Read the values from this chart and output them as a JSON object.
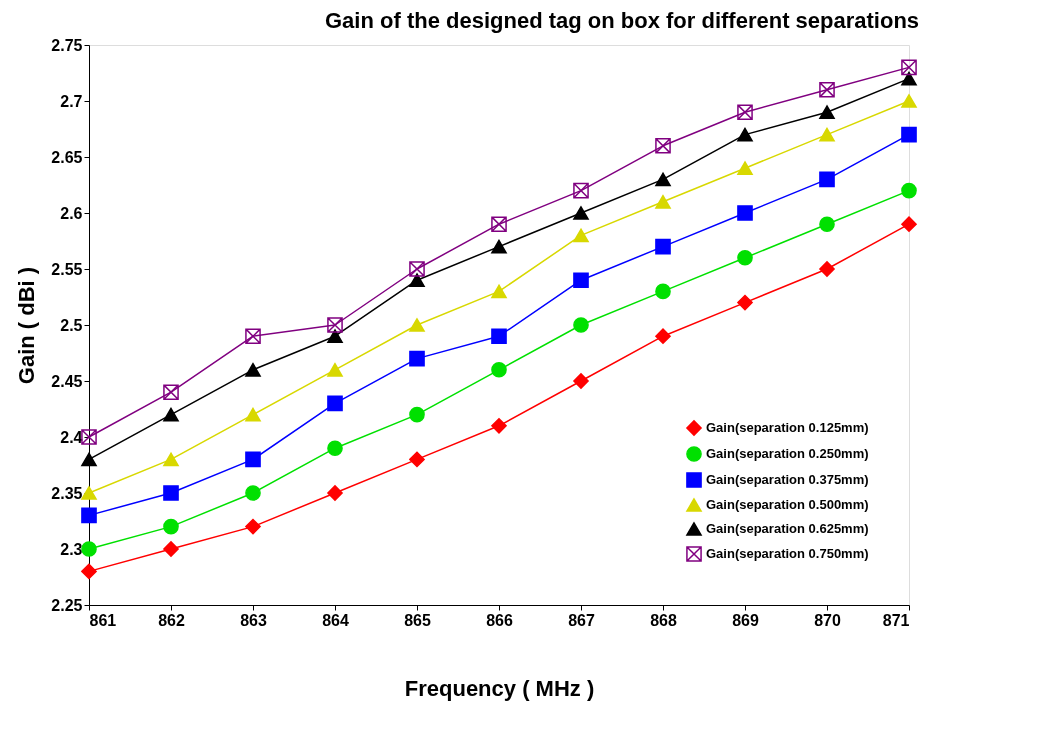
{
  "chart_data": {
    "type": "line",
    "title": "Gain of the designed tag on box for different separations",
    "xlabel": "Frequency ( MHz )",
    "ylabel": "Gain ( dBi )",
    "x": [
      861,
      862,
      863,
      864,
      865,
      866,
      867,
      868,
      869,
      870,
      871
    ],
    "series": [
      {
        "name": "Gain(separation 0.125mm)",
        "color": "#ff0000",
        "marker": "diamond",
        "values": [
          2.28,
          2.3,
          2.32,
          2.35,
          2.38,
          2.41,
          2.45,
          2.49,
          2.52,
          2.55,
          2.59
        ]
      },
      {
        "name": "Gain(separation 0.250mm)",
        "color": "#00e000",
        "marker": "circle",
        "values": [
          2.3,
          2.32,
          2.35,
          2.39,
          2.42,
          2.46,
          2.5,
          2.53,
          2.56,
          2.59,
          2.62
        ]
      },
      {
        "name": "Gain(separation 0.375mm)",
        "color": "#0000ff",
        "marker": "square",
        "values": [
          2.33,
          2.35,
          2.38,
          2.43,
          2.47,
          2.49,
          2.54,
          2.57,
          2.6,
          2.63,
          2.67
        ]
      },
      {
        "name": "Gain(separation 0.500mm)",
        "color": "#d8d800",
        "marker": "triangle",
        "values": [
          2.35,
          2.38,
          2.42,
          2.46,
          2.5,
          2.53,
          2.58,
          2.61,
          2.64,
          2.67,
          2.7
        ]
      },
      {
        "name": "Gain(separation 0.625mm)",
        "color": "#000000",
        "marker": "triangle",
        "values": [
          2.38,
          2.42,
          2.46,
          2.49,
          2.54,
          2.57,
          2.6,
          2.63,
          2.67,
          2.69,
          2.72
        ]
      },
      {
        "name": "Gain(separation 0.750mm)",
        "color": "#800080",
        "marker": "cross",
        "values": [
          2.4,
          2.44,
          2.49,
          2.5,
          2.55,
          2.59,
          2.62,
          2.66,
          2.69,
          2.71,
          2.73
        ]
      }
    ],
    "xlim": [
      861,
      871
    ],
    "xticks": [
      861,
      862,
      863,
      864,
      865,
      866,
      867,
      868,
      869,
      870,
      871
    ],
    "ylim": [
      2.25,
      2.75
    ],
    "yticks": [
      2.25,
      2.3,
      2.35,
      2.4,
      2.45,
      2.5,
      2.55,
      2.6,
      2.65,
      2.7,
      2.75
    ],
    "grid": false,
    "legend": "bottom right",
    "line_style": "solid"
  }
}
